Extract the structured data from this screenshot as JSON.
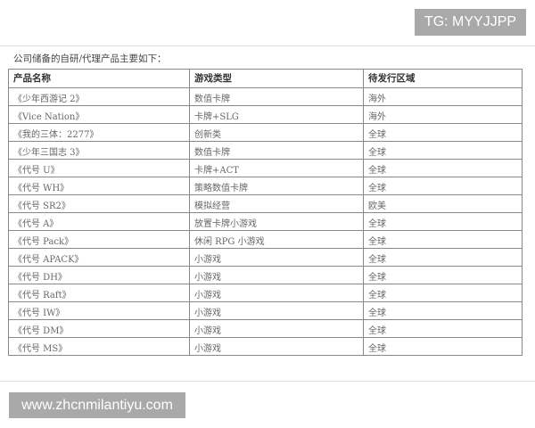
{
  "tg_label": "TG: MYYJJPP",
  "intro": "公司储备的自研/代理产品主要如下：",
  "table": {
    "headers": [
      "产品名称",
      "游戏类型",
      "待发行区域"
    ],
    "rows": [
      [
        "《少年西游记 2》",
        "数值卡牌",
        "海外"
      ],
      [
        "《Vice Nation》",
        "卡牌+SLG",
        "海外"
      ],
      [
        "《我的三体：2277》",
        "创新类",
        "全球"
      ],
      [
        "《少年三国志 3》",
        "数值卡牌",
        "全球"
      ],
      [
        "《代号 U》",
        "卡牌+ACT",
        "全球"
      ],
      [
        "《代号 WH》",
        "策略数值卡牌",
        "全球"
      ],
      [
        "《代号 SR2》",
        "模拟经营",
        "欧美"
      ],
      [
        "《代号 A》",
        "放置卡牌小游戏",
        "全球"
      ],
      [
        "《代号 Pack》",
        "休闲 RPG 小游戏",
        "全球"
      ],
      [
        "《代号 APACK》",
        "小游戏",
        "全球"
      ],
      [
        "《代号 DH》",
        "小游戏",
        "全球"
      ],
      [
        "《代号 Raft》",
        "小游戏",
        "全球"
      ],
      [
        "《代号 IW》",
        "小游戏",
        "全球"
      ],
      [
        "《代号 DM》",
        "小游戏",
        "全球"
      ],
      [
        "《代号 MS》",
        "小游戏",
        "全球"
      ]
    ]
  },
  "watermark": "www.zhcnmilantiyu.com"
}
